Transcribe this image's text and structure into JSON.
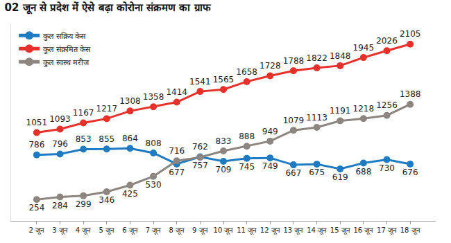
{
  "chart_data": {
    "type": "line",
    "title": "02 जून से प्रदेश में ऐसे बढ़ा कोरोना संक्रमण का ग्राफ",
    "categories": [
      "2 जून",
      "3 जून",
      "4 जून",
      "5 जून",
      "6 जून",
      "7 जून",
      "8 जून",
      "9 जून",
      "10 जून",
      "11 जून",
      "12 जून",
      "13 जून",
      "14 जून",
      "15 जून",
      "16 जून",
      "17 जून",
      "18 जून"
    ],
    "series": [
      {
        "name": "कुल सक्रिय केस",
        "color": "#1f7bc1",
        "values": [
          786,
          796,
          853,
          855,
          864,
          808,
          677,
          762,
          709,
          745,
          749,
          667,
          675,
          619,
          688,
          730,
          676
        ]
      },
      {
        "name": "कुल संक्रमित केस",
        "color": "#e8302a",
        "values": [
          1051,
          1093,
          1167,
          1217,
          1308,
          1358,
          1414,
          1541,
          1565,
          1658,
          1728,
          1788,
          1822,
          1848,
          1945,
          2026,
          2105
        ]
      },
      {
        "name": "कुल स्वस्थ मरीज",
        "color": "#8c8580",
        "values": [
          254,
          284,
          299,
          346,
          425,
          530,
          716,
          757,
          833,
          888,
          949,
          1079,
          1113,
          1191,
          1218,
          1256,
          1388
        ]
      }
    ],
    "ylim": [
      0,
      2350
    ],
    "yticks": [],
    "grid": false,
    "legend": "top-left",
    "data_labels": true,
    "tick_labels": "x",
    "marker": "circle",
    "line_style": "solid"
  }
}
